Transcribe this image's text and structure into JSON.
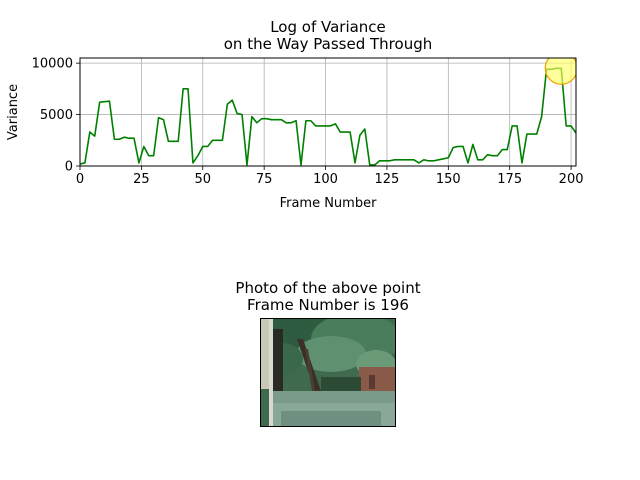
{
  "chart_data": {
    "type": "line",
    "title_line1": "Log of Variance",
    "title_line2": "on the Way Passed Through",
    "xlabel": "Frame Number",
    "ylabel": "Variance",
    "xlim": [
      0,
      202
    ],
    "ylim": [
      0,
      10500
    ],
    "xticks": [
      0,
      25,
      50,
      75,
      100,
      125,
      150,
      175,
      200
    ],
    "yticks": [
      0,
      5000,
      10000
    ],
    "grid": true,
    "line_color": "#008000",
    "highlight": {
      "x": 196,
      "y": 9500,
      "color": "#ffff66",
      "edge_color": "#f0a000"
    },
    "series": [
      {
        "x": [
          0,
          2,
          4,
          6,
          8,
          12,
          14,
          16,
          18,
          20,
          22,
          24,
          26,
          28,
          30,
          32,
          34,
          36,
          38,
          40,
          42,
          44,
          46,
          48,
          50,
          52,
          54,
          56,
          58,
          60,
          62,
          64,
          66,
          68,
          70,
          72,
          74,
          76,
          78,
          80,
          82,
          84,
          86,
          88,
          90,
          92,
          94,
          96,
          98,
          100,
          102,
          104,
          106,
          108,
          110,
          112,
          114,
          116,
          118,
          120,
          122,
          124,
          126,
          128,
          130,
          132,
          134,
          136,
          138,
          140,
          142,
          144,
          146,
          148,
          150,
          152,
          154,
          156,
          158,
          160,
          162,
          164,
          166,
          168,
          170,
          172,
          174,
          176,
          178,
          180,
          182,
          184,
          186,
          188,
          190,
          192,
          194,
          196,
          198,
          200,
          202
        ],
        "y": [
          200,
          300,
          3300,
          2900,
          6200,
          6300,
          2600,
          2600,
          2800,
          2700,
          2700,
          300,
          1900,
          1000,
          1000,
          4700,
          4500,
          2400,
          2400,
          2400,
          7500,
          7500,
          300,
          1000,
          1900,
          1900,
          2500,
          2500,
          2500,
          6000,
          6400,
          5100,
          5000,
          100,
          4800,
          4200,
          4600,
          4600,
          4500,
          4500,
          4500,
          4200,
          4200,
          4400,
          100,
          4400,
          4400,
          3900,
          3900,
          3900,
          3900,
          4100,
          3300,
          3300,
          3300,
          300,
          3000,
          3600,
          100,
          100,
          500,
          500,
          500,
          600,
          600,
          600,
          600,
          600,
          300,
          600,
          500,
          500,
          600,
          700,
          800,
          1800,
          1900,
          1900,
          300,
          2100,
          600,
          600,
          1100,
          1000,
          1000,
          1600,
          1600,
          3900,
          3900,
          300,
          3100,
          3100,
          3100,
          4800,
          9400,
          9400,
          9500,
          9500,
          3900,
          3900,
          3200
        ]
      }
    ]
  },
  "photo": {
    "title_line1": "Photo of the above point",
    "title_line2": "Frame Number is 196"
  }
}
